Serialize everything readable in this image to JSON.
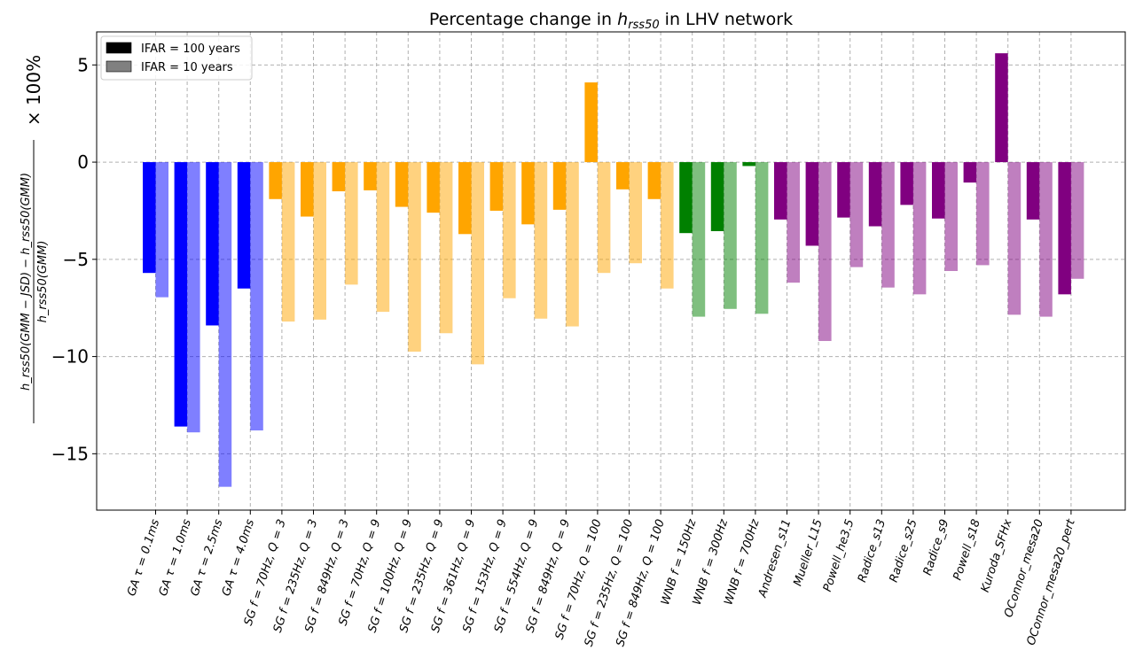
{
  "chart_data": {
    "type": "bar",
    "title_prefix": "Percentage change in ",
    "title_var": "h",
    "title_sub": "rss50",
    "title_suffix": " in LHV network",
    "ylabel": {
      "numer": "h_rss50(GMM − JSD) − h_rss50(GMM)",
      "denom": "h_rss50(GMM)",
      "suffix": "× 100%"
    },
    "ylim": [
      -17.9,
      6.7
    ],
    "yticks": [
      5,
      0,
      -5,
      -10,
      -15
    ],
    "ytick_labels": [
      "5",
      "0",
      "−5",
      "−10",
      "−15"
    ],
    "grid": true,
    "legend_position": "upper-left",
    "series": [
      {
        "name": "IFAR = 100 years",
        "legend_color": "#000000",
        "opacity": 1.0
      },
      {
        "name": "IFAR = 10 years",
        "legend_color": "#808080",
        "opacity": 0.5
      }
    ],
    "categories": [
      "GA τ = 0.1ms",
      "GA τ = 1.0ms",
      "GA τ = 2.5ms",
      "GA τ = 4.0ms",
      "SG f = 70Hz, Q = 3",
      "SG f = 235Hz, Q = 3",
      "SG f = 849Hz, Q = 3",
      "SG f = 70Hz, Q = 9",
      "SG f = 100Hz, Q = 9",
      "SG f = 235Hz, Q = 9",
      "SG f = 361Hz, Q = 9",
      "SG f = 153Hz, Q = 9",
      "SG f = 554Hz, Q = 9",
      "SG f = 849Hz, Q = 9",
      "SG f = 70Hz, Q = 100",
      "SG f = 235Hz, Q = 100",
      "SG f = 849Hz, Q = 100",
      "WNB f = 150Hz",
      "WNB f = 300Hz",
      "WNB f = 700Hz",
      "Andresen_s11",
      "Mueller_L15",
      "Powell_he3.5",
      "Radice_s13",
      "Radice_s25",
      "Radice_s9",
      "Powell_s18",
      "Kuroda_SFHx",
      "OConnor_mesa20",
      "OConnor_mesa20_pert"
    ],
    "colors": [
      "#0000ff",
      "#0000ff",
      "#0000ff",
      "#0000ff",
      "#ffa500",
      "#ffa500",
      "#ffa500",
      "#ffa500",
      "#ffa500",
      "#ffa500",
      "#ffa500",
      "#ffa500",
      "#ffa500",
      "#ffa500",
      "#ffa500",
      "#ffa500",
      "#ffa500",
      "#008000",
      "#008000",
      "#008000",
      "#800080",
      "#800080",
      "#800080",
      "#800080",
      "#800080",
      "#800080",
      "#800080",
      "#800080",
      "#800080",
      "#800080"
    ],
    "ifar100": [
      -5.7,
      -13.6,
      -8.4,
      -6.5,
      -1.9,
      -2.8,
      -1.5,
      -1.45,
      -2.3,
      -2.6,
      -3.7,
      -2.5,
      -3.2,
      -2.45,
      4.1,
      -1.4,
      -1.9,
      -3.65,
      -3.55,
      -0.2,
      -2.95,
      -4.3,
      -2.85,
      -3.3,
      -2.2,
      -2.9,
      -1.05,
      5.6,
      -2.95,
      -6.8
    ],
    "ifar10": [
      -6.95,
      -13.9,
      -16.7,
      -13.8,
      -8.2,
      -8.1,
      -6.3,
      -7.7,
      -9.75,
      -8.8,
      -10.4,
      -7.0,
      -8.05,
      -8.45,
      -5.7,
      -5.2,
      -6.5,
      -7.95,
      -7.55,
      -7.8,
      -6.2,
      -9.2,
      -5.4,
      -6.45,
      -6.8,
      -5.6,
      -5.3,
      -7.85,
      -7.95,
      -6.0
    ]
  }
}
